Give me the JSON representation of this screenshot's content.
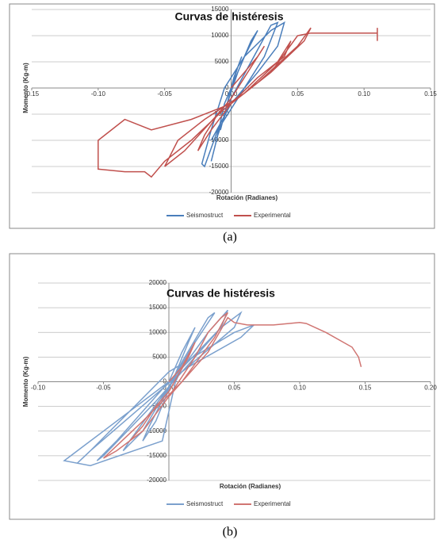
{
  "chart_data": [
    {
      "type": "line",
      "title": "Curvas de histéresis",
      "xlabel": "Rotación (Radianes)",
      "ylabel": "Momento (Kg-m)",
      "caption": "(a)",
      "xlim": [
        -0.15,
        0.15
      ],
      "xticks": [
        -0.15,
        {
          "value": -0.1,
          "label": "-0.10"
        },
        -0.05,
        {
          "value": 0,
          "label": "0.00"
        },
        0.05,
        {
          "value": 0.1,
          "label": "0.10"
        },
        0.15
      ],
      "ylim": [
        -20000,
        15000
      ],
      "yticks": [
        -20000,
        -15000,
        -10000,
        -5000,
        0,
        5000,
        10000,
        15000
      ],
      "grid": true,
      "series": [
        {
          "name": "Seismostruct",
          "color": "#4a7ebb",
          "x": [
            0,
            0.005,
            0.008,
            0.002,
            -0.005,
            -0.008,
            -0.003,
            0.005,
            0.015,
            0.02,
            0.01,
            -0.005,
            -0.012,
            -0.015,
            -0.01,
            0,
            0.015,
            0.03,
            0.035,
            0.025,
            0.005,
            -0.01,
            -0.02,
            -0.022,
            -0.015,
            -0.005,
            0.01,
            0.03,
            0.04,
            0.035,
            0.02,
            0,
            -0.015
          ],
          "values": [
            0,
            4000,
            6000,
            2000,
            -5000,
            -8000,
            -3000,
            3000,
            9000,
            11000,
            6000,
            -3000,
            -11000,
            -14000,
            -9000,
            -2000,
            5000,
            12000,
            12500,
            6000,
            -2000,
            -8000,
            -15000,
            -14500,
            -8000,
            0,
            6000,
            11000,
            12500,
            8000,
            3000,
            -3000,
            -10000
          ]
        },
        {
          "name": "Experimental",
          "color": "#c0504d",
          "x": [
            0,
            0.01,
            0.02,
            0.025,
            0.015,
            0,
            -0.01,
            -0.02,
            -0.025,
            -0.015,
            0,
            0.02,
            0.04,
            0.045,
            0.035,
            0.01,
            -0.02,
            -0.04,
            -0.05,
            -0.035,
            -0.01,
            0.02,
            0.05,
            0.06,
            0.055,
            0.03,
            0,
            -0.03,
            -0.06,
            -0.08,
            -0.1,
            -0.1,
            -0.08,
            -0.065,
            -0.06,
            -0.05,
            -0.03,
            -0.005,
            0.03,
            0.05,
            0.06,
            0.08,
            0.11,
            0.11,
            0.11
          ],
          "values": [
            0,
            3000,
            6000,
            8000,
            4000,
            -2000,
            -5000,
            -9000,
            -12000,
            -8000,
            -3000,
            2000,
            6000,
            9000,
            5000,
            -1000,
            -6000,
            -10000,
            -15000,
            -12000,
            -5000,
            1000,
            8000,
            11500,
            9000,
            3000,
            -3000,
            -6000,
            -8000,
            -6000,
            -10000,
            -15500,
            -16000,
            -16000,
            -17000,
            -14000,
            -10000,
            -4000,
            3000,
            10000,
            10500,
            10500,
            10500,
            11500,
            9000
          ]
        }
      ]
    },
    {
      "type": "line",
      "title": "Curvas de histéresis",
      "xlabel": "Rotación (Radianes)",
      "ylabel": "Momento (Kg-m)",
      "caption": "(b)",
      "xlim": [
        -0.1,
        0.2
      ],
      "xticks": [
        {
          "value": -0.1,
          "label": "-0.10"
        },
        -0.05,
        {
          "value": 0,
          "label": "0.00"
        },
        0.05,
        {
          "value": 0.1,
          "label": "0.10"
        },
        0.15,
        {
          "value": 0.2,
          "label": "0.20"
        }
      ],
      "ylim": [
        -20000,
        20000
      ],
      "yticks": [
        -20000,
        -15000,
        -10000,
        -5000,
        0,
        5000,
        10000,
        15000,
        20000
      ],
      "grid": true,
      "series": [
        {
          "name": "Seismostruct",
          "color": "#7ba0cd",
          "x": [
            0,
            0.01,
            0.02,
            0.015,
            -0.01,
            -0.02,
            -0.015,
            0.01,
            0.03,
            0.035,
            0.02,
            -0.02,
            -0.035,
            -0.03,
            0,
            0.03,
            0.045,
            0.04,
            -0.01,
            -0.05,
            -0.055,
            -0.04,
            0,
            0.04,
            0.055,
            0.05,
            0.01,
            -0.06,
            -0.07,
            -0.06,
            0,
            0.05,
            0.065,
            0.055,
            0.015,
            -0.065,
            -0.08,
            -0.06,
            -0.005,
            0.005,
            0.02
          ],
          "values": [
            0,
            6000,
            11000,
            8000,
            -8000,
            -12000,
            -9000,
            4000,
            13000,
            14000,
            8000,
            -10000,
            -14000,
            -12000,
            -1000,
            10000,
            14500,
            11000,
            -4000,
            -15000,
            -16000,
            -12000,
            0,
            11000,
            14000,
            11000,
            2000,
            -14000,
            -16500,
            -14000,
            2000,
            10000,
            11500,
            9000,
            3000,
            -13000,
            -16000,
            -17000,
            -12000,
            0,
            8000
          ]
        },
        {
          "name": "Experimental",
          "color": "#d07572",
          "x": [
            0,
            0.01,
            0.02,
            0.015,
            0,
            -0.01,
            -0.02,
            -0.03,
            -0.02,
            0,
            0.02,
            0.03,
            0.04,
            0.045,
            0.035,
            0.01,
            -0.02,
            -0.04,
            -0.05,
            -0.04,
            -0.02,
            0,
            0.03,
            0.045,
            0.05,
            0.06,
            0.08,
            0.1,
            0.105,
            0.12,
            0.14,
            0.145,
            0.147
          ],
          "values": [
            0,
            3000,
            8000,
            5000,
            -2000,
            -5000,
            -9000,
            -12000,
            -10000,
            -3000,
            5000,
            10000,
            13000,
            14000,
            9000,
            0,
            -8000,
            -13000,
            -15500,
            -14000,
            -10000,
            -3000,
            6000,
            13000,
            12000,
            11500,
            11500,
            12000,
            11800,
            10000,
            7000,
            5000,
            3000
          ]
        }
      ]
    }
  ]
}
